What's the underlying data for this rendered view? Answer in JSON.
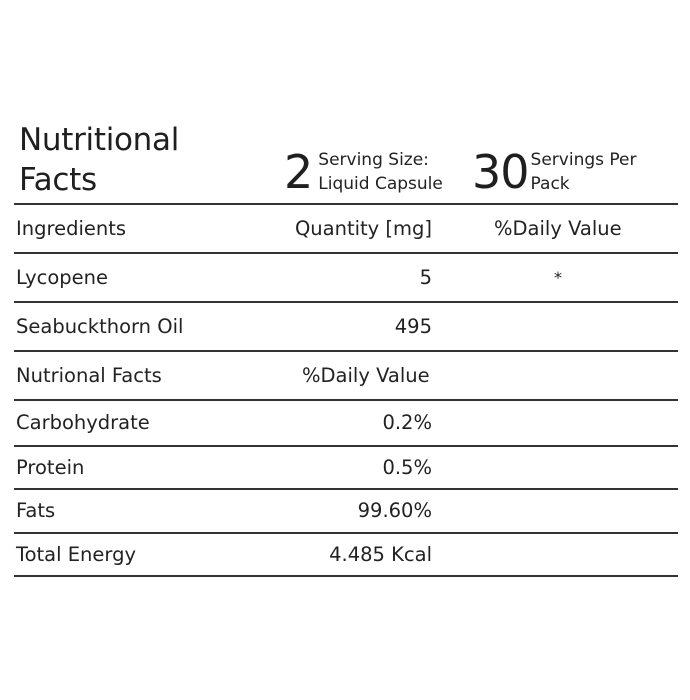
{
  "header": {
    "title_line1": "Nutritional",
    "title_line2": "Facts",
    "serving_size_number": "2",
    "serving_size_line1": "Serving Size:",
    "serving_size_line2": "Liquid Capsule",
    "servings_per_pack_number": "30",
    "servings_per_pack_line1": "Servings Per",
    "servings_per_pack_line2": "Pack"
  },
  "table": {
    "columns": [
      "Ingredients",
      "Quantity [mg]",
      "%Daily Value"
    ],
    "ingredients": [
      {
        "name": "Lycopene",
        "quantity": "5",
        "daily_value": "*"
      },
      {
        "name": "Seabuckthorn Oil",
        "quantity": "495",
        "daily_value": ""
      }
    ],
    "section": {
      "label": "Nutrional Facts",
      "value_header": "%Daily Value"
    },
    "nutrients": [
      {
        "name": "Carbohydrate",
        "value": "0.2%"
      },
      {
        "name": "Protein",
        "value": "0.5%"
      },
      {
        "name": "Fats",
        "value": "99.60%"
      },
      {
        "name": "Total Energy",
        "value": "4.485 Kcal"
      }
    ]
  }
}
